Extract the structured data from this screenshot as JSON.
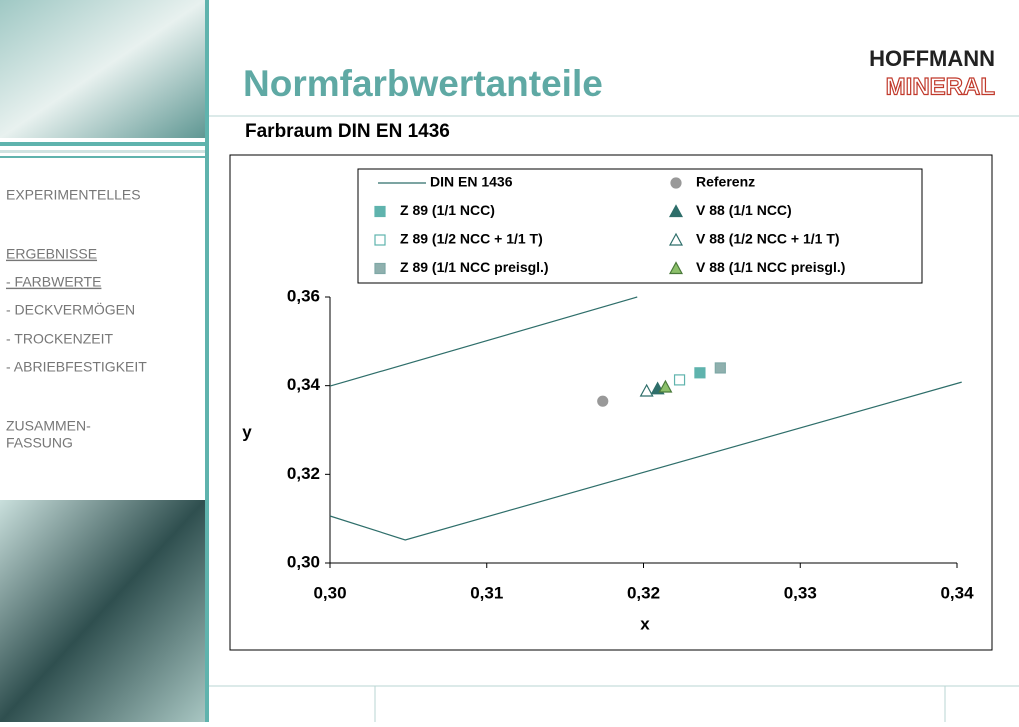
{
  "header": {
    "title": "Normfarbwertanteile",
    "subtitle": "Farbraum DIN EN 1436",
    "logo": [
      "HOFFMANN",
      "MINERAL"
    ]
  },
  "nav": {
    "items": [
      "EXPERIMENTELLES",
      "ERGEBNISSE",
      "- FARBWERTE",
      "- DECKVERMÖGEN",
      "- TROCKENZEIT",
      "- ABRIEBFESTIGKEIT"
    ],
    "last": [
      "ZUSAMMEN-",
      "FASSUNG"
    ]
  },
  "chart_data": {
    "type": "scatter",
    "xlabel": "x",
    "ylabel": "y",
    "xlim": [
      0.3,
      0.34
    ],
    "ylim": [
      0.3,
      0.36
    ],
    "xticks": [
      {
        "value": 0.3,
        "label": "0,30"
      },
      {
        "value": 0.31,
        "label": "0,31"
      },
      {
        "value": 0.32,
        "label": "0,32"
      },
      {
        "value": 0.33,
        "label": "0,33"
      },
      {
        "value": 0.34,
        "label": "0,34"
      }
    ],
    "yticks": [
      {
        "value": 0.3,
        "label": "0,30"
      },
      {
        "value": 0.32,
        "label": "0,32"
      },
      {
        "value": 0.34,
        "label": "0,34"
      },
      {
        "value": 0.36,
        "label": "0,36"
      }
    ],
    "grid": false,
    "series": [
      {
        "name": "DIN EN 1436",
        "marker": "line",
        "color": "#2e6e6a",
        "fill": "none",
        "x": [
          0.3,
          0.3196,
          null,
          0.3,
          0.3048,
          0.3403
        ],
        "values": [
          0.3399,
          0.36,
          null,
          0.3106,
          0.3052,
          0.3408
        ]
      },
      {
        "name": "Referenz",
        "marker": "circle",
        "color": "#999999",
        "fill": "#999999",
        "x": [
          0.3174
        ],
        "values": [
          0.3365
        ]
      },
      {
        "name": "Z 89 (1/1 NCC)",
        "marker": "square",
        "color": "#5fb3ad",
        "fill": "#5fb3ad",
        "x": [
          0.3236
        ],
        "values": [
          0.3429
        ]
      },
      {
        "name": "V 88 (1/1 NCC)",
        "marker": "triangle",
        "color": "#2e6e6a",
        "fill": "#2e6e6a",
        "x": [
          0.3209
        ],
        "values": [
          0.3393
        ]
      },
      {
        "name": "Z 89 (1/2 NCC + 1/1 T)",
        "marker": "square",
        "color": "#5fb3ad",
        "fill": "none",
        "x": [
          0.3223
        ],
        "values": [
          0.3413
        ]
      },
      {
        "name": "V 88 (1/2 NCC + 1/1 T)",
        "marker": "triangle",
        "color": "#2e6e6a",
        "fill": "none",
        "x": [
          0.3202
        ],
        "values": [
          0.3388
        ]
      },
      {
        "name": "Z 89 (1/1 NCC preisgl.)",
        "marker": "square",
        "color": "#7fa8a6",
        "fill": "#8fb0ae",
        "x": [
          0.3249
        ],
        "values": [
          0.344
        ]
      },
      {
        "name": "V 88 (1/1 NCC preisgl.)",
        "marker": "triangle",
        "color": "#4a7a3a",
        "fill": "#8cc06a",
        "x": [
          0.3214
        ],
        "values": [
          0.3397
        ]
      }
    ]
  }
}
